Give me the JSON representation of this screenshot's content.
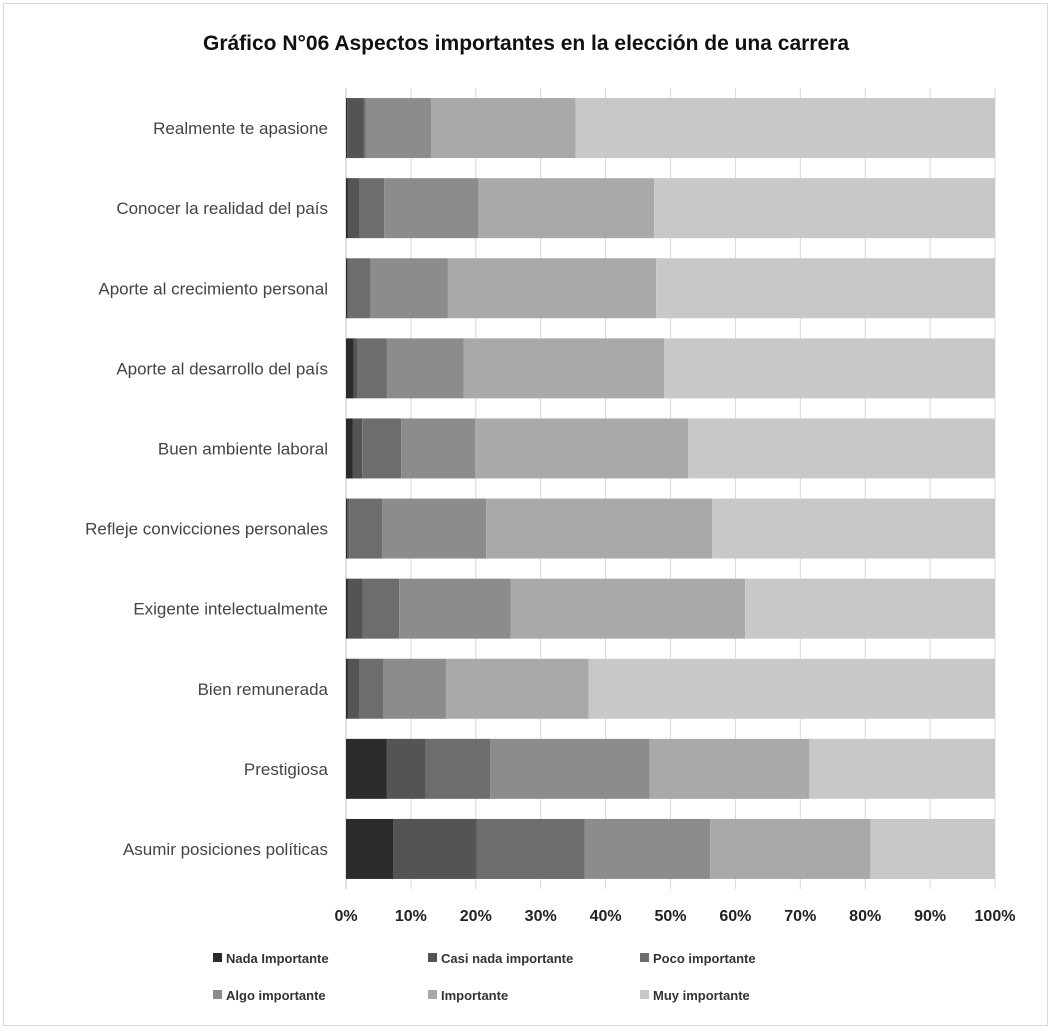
{
  "chart_data": {
    "type": "bar",
    "orientation": "horizontal",
    "stacked": "percent",
    "title": "Gráfico N°06 Aspectos importantes en la elección de una carrera",
    "categories": [
      "Realmente te apasione",
      "Conocer la realidad del país",
      "Aporte al crecimiento personal",
      "Aporte al desarrollo del país",
      "Buen ambiente laboral",
      "Refleje convicciones personales",
      "Exigente intelectualmente",
      "Bien remunerada",
      "Prestigiosa",
      "Asumir posiciones políticas"
    ],
    "series": [
      {
        "name": "Nada Importante",
        "color": "#2b2b2b",
        "values": [
          0.2,
          0.3,
          0.2,
          1.2,
          1.0,
          0.2,
          0.3,
          0.3,
          6.3,
          7.3
        ]
      },
      {
        "name": "Casi nada importante",
        "color": "#545454",
        "values": [
          2.5,
          1.8,
          0.2,
          0.6,
          1.5,
          0.3,
          2.3,
          1.8,
          6.0,
          12.8
        ]
      },
      {
        "name": "Poco importante",
        "color": "#6d6d6d",
        "values": [
          0.3,
          3.8,
          3.4,
          4.5,
          6.0,
          5.1,
          5.6,
          3.6,
          9.9,
          16.7
        ]
      },
      {
        "name": "Algo importante",
        "color": "#8c8c8c",
        "values": [
          10.1,
          14.5,
          11.9,
          11.8,
          11.4,
          16.0,
          17.2,
          9.7,
          24.6,
          19.3
        ]
      },
      {
        "name": "Importante",
        "color": "#a9a9a9",
        "values": [
          22.3,
          27.1,
          32.1,
          30.9,
          32.8,
          34.8,
          36.1,
          22.0,
          24.6,
          24.7
        ]
      },
      {
        "name": "Muy importante",
        "color": "#c8c8c8",
        "values": [
          64.6,
          52.5,
          52.2,
          51.0,
          47.3,
          43.6,
          38.5,
          62.6,
          28.6,
          19.2
        ]
      }
    ],
    "xlim": [
      0,
      100
    ],
    "xticks": [
      "0%",
      "10%",
      "20%",
      "30%",
      "40%",
      "50%",
      "60%",
      "70%",
      "80%",
      "90%",
      "100%"
    ],
    "grid": true,
    "legend_position": "bottom"
  }
}
